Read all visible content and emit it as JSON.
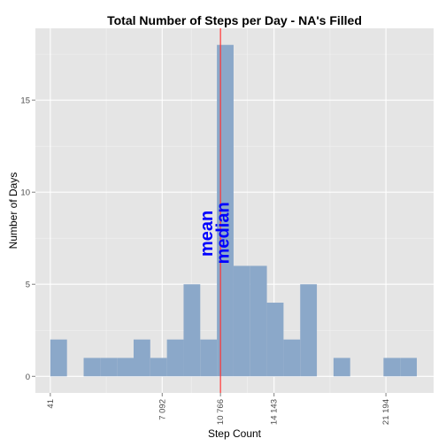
{
  "chart_data": {
    "type": "bar",
    "title": "Total Number of Steps per Day - NA's Filled",
    "xlabel": "Step Count",
    "ylabel": "Number of Days",
    "xlim": [
      -900,
      24200
    ],
    "ylim": [
      -0.9,
      18.9
    ],
    "bin_width": 1050,
    "x_ticks": [
      {
        "value": 41,
        "label": "41"
      },
      {
        "value": 7092,
        "label": "7 092"
      },
      {
        "value": 10766,
        "label": "10 766"
      },
      {
        "value": 14143,
        "label": "14 143"
      },
      {
        "value": 21194,
        "label": "21 194"
      }
    ],
    "y_ticks": [
      0,
      5,
      10,
      15
    ],
    "bins": [
      {
        "start": 41,
        "count": 2
      },
      {
        "start": 1091,
        "count": 0
      },
      {
        "start": 2141,
        "count": 1
      },
      {
        "start": 3191,
        "count": 1
      },
      {
        "start": 4241,
        "count": 1
      },
      {
        "start": 5291,
        "count": 2
      },
      {
        "start": 6341,
        "count": 1
      },
      {
        "start": 7391,
        "count": 2
      },
      {
        "start": 8441,
        "count": 5
      },
      {
        "start": 9491,
        "count": 2
      },
      {
        "start": 10541,
        "count": 18
      },
      {
        "start": 11591,
        "count": 6
      },
      {
        "start": 12641,
        "count": 6
      },
      {
        "start": 13691,
        "count": 4
      },
      {
        "start": 14741,
        "count": 2
      },
      {
        "start": 15791,
        "count": 5
      },
      {
        "start": 16841,
        "count": 0
      },
      {
        "start": 17891,
        "count": 1
      },
      {
        "start": 18941,
        "count": 0
      },
      {
        "start": 19991,
        "count": 0
      },
      {
        "start": 21041,
        "count": 1
      },
      {
        "start": 22091,
        "count": 1
      }
    ],
    "reference_line": {
      "value": 10766,
      "color": "#ff3333"
    },
    "annotations": [
      {
        "text": "mean",
        "x": 10250,
        "y": 6.5
      },
      {
        "text": "median",
        "x": 11300,
        "y": 6.1
      }
    ],
    "bar_color": "#8ba8c9",
    "panel_color": "#e5e5e5",
    "annotation_color": "#0000ff",
    "grid": true
  }
}
